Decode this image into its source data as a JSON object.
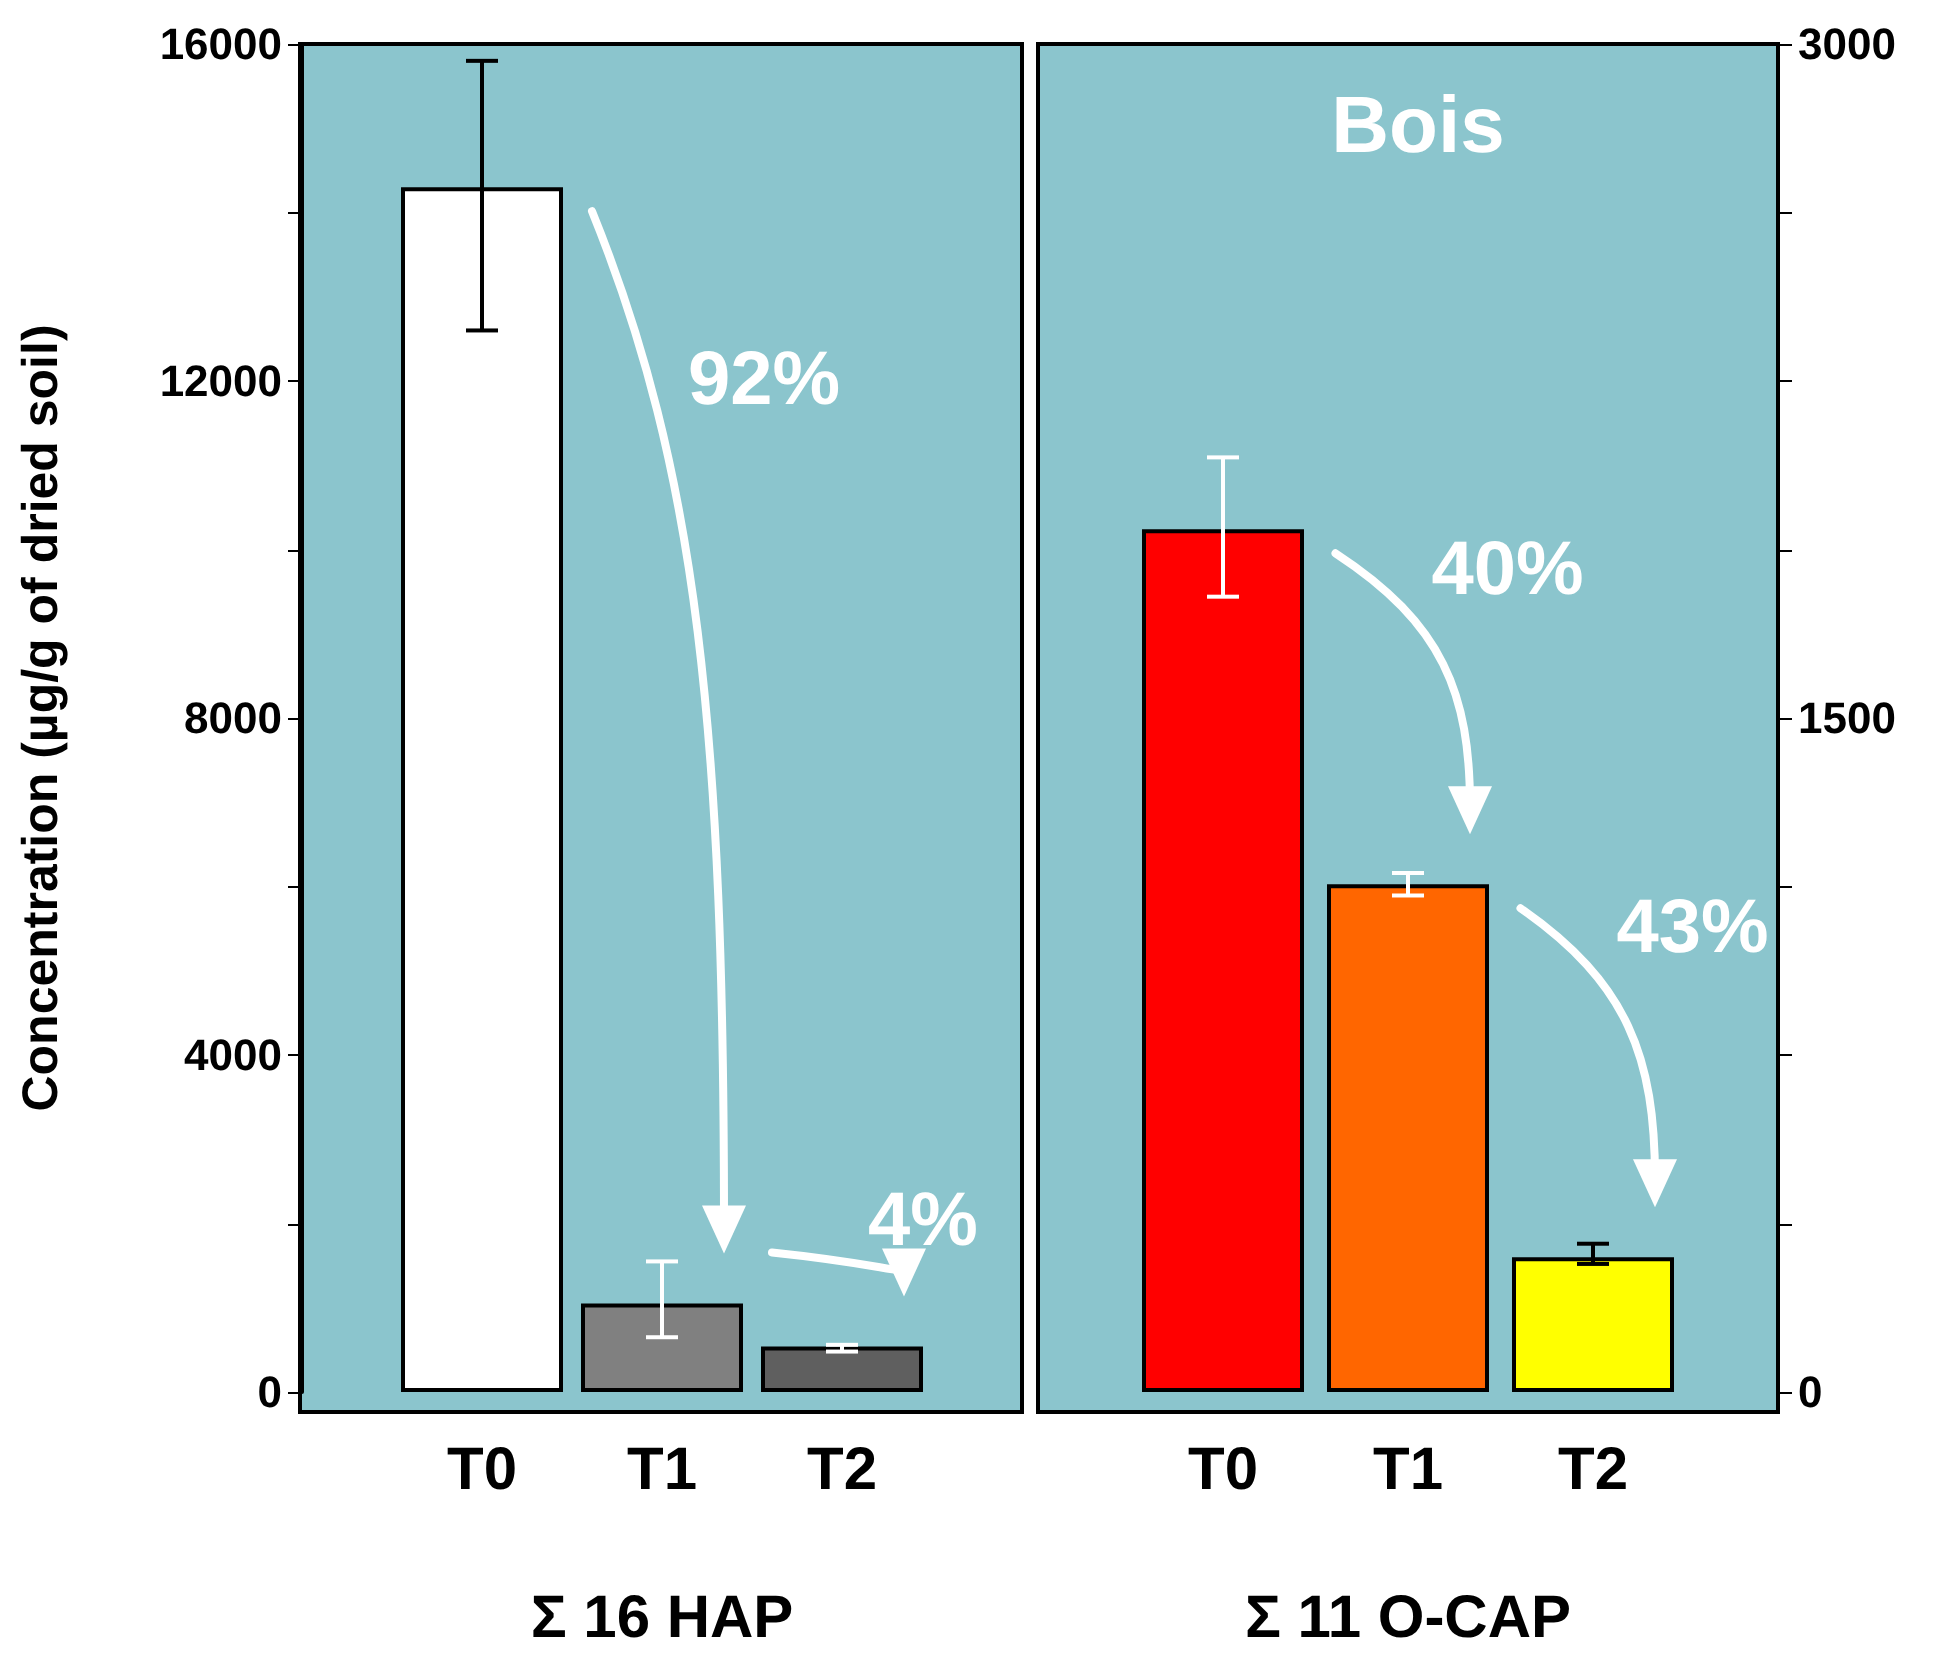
{
  "chart_data": [
    {
      "type": "bar",
      "xlabel": "Σ 16 HAP",
      "ylabel": "Concentration (µg/g of dried soil)",
      "categories": [
        "T0",
        "T1",
        "T2"
      ],
      "values": [
        14300,
        1050,
        540
      ],
      "colors": [
        "#ffffff",
        "#808080",
        "#5f5f5f"
      ],
      "errors": [
        [
          12600,
          15800
        ],
        [
          650,
          1550
        ],
        [
          480,
          560
        ]
      ],
      "ylim": [
        0,
        16000
      ],
      "yticks": [
        0,
        {
          "value": 2000,
          "label": null
        },
        4000,
        {
          "value": 6000,
          "label": null
        },
        8000,
        {
          "value": 10000,
          "label": null
        },
        12000,
        {
          "value": 14000,
          "label": null
        },
        16000
      ],
      "annotations": [
        "92%",
        "4%"
      ]
    },
    {
      "type": "bar",
      "title": "Bois",
      "xlabel": "Σ 11 O-CAP",
      "categories": [
        "T0",
        "T1",
        "T2"
      ],
      "values": [
        1920,
        1130,
        300
      ],
      "colors": [
        "#ff0000",
        "#ff6600",
        "#ffff00"
      ],
      "errors": [
        [
          1770,
          2080
        ],
        [
          1105,
          1155
        ],
        [
          285,
          330
        ]
      ],
      "ylim": [
        0,
        3000
      ],
      "yticks": [
        0,
        {
          "value": 375,
          "label": null
        },
        {
          "value": 750,
          "label": null
        },
        {
          "value": 1125,
          "label": null
        },
        1500,
        {
          "value": 1875,
          "label": null
        },
        {
          "value": 2250,
          "label": null
        },
        {
          "value": 2625,
          "label": null
        },
        3000
      ],
      "annotations": [
        "40%",
        "43%"
      ]
    }
  ]
}
